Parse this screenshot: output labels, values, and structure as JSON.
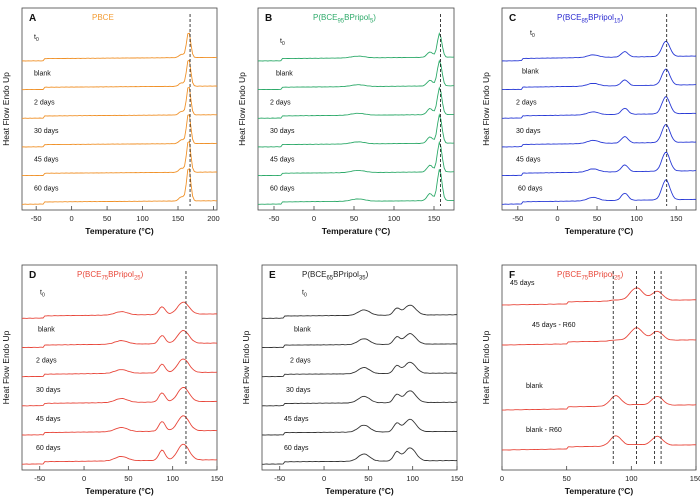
{
  "chart_data": [
    {
      "type": "line",
      "panel": "A",
      "title": "PBCE",
      "title_color": "#f39c34",
      "color": "#f0922a",
      "xlabel": "Temperature (°C)",
      "ylabel": "Heat Flow Endo Up",
      "xlim": [
        -70,
        205
      ],
      "x_ticks": [
        -50,
        0,
        50,
        100,
        150,
        200
      ],
      "dashed_line_x": 167,
      "curve_labels": [
        "t0",
        "blank",
        "2 days",
        "30 days",
        "45 days",
        "60 days"
      ],
      "peaks": [
        {
          "x": 165,
          "h": 1.2,
          "w": 4
        },
        {
          "x": 155,
          "h": 0.15,
          "w": 5
        }
      ],
      "baseline_slope": 0.05,
      "step_x": -40
    },
    {
      "type": "line",
      "panel": "B",
      "title": "P(BCE95BPripol5)",
      "title_main": "P(BCE",
      "title_sub1": "95",
      "title_mid": "BPripol",
      "title_sub2": "5",
      "title_end": ")",
      "title_color": "#2eaa6a",
      "color": "#2eaa6a",
      "xlabel": "Temperature (°C)",
      "ylabel": "Heat Flow Endo Up",
      "xlim": [
        -70,
        175
      ],
      "x_ticks": [
        -50,
        0,
        50,
        100,
        150
      ],
      "dashed_line_x": 158,
      "curve_labels": [
        "t0",
        "blank",
        "2 days",
        "30 days",
        "45 days",
        "60 days"
      ],
      "peaks": [
        {
          "x": 157,
          "h": 1.1,
          "w": 4
        },
        {
          "x": 145,
          "h": 0.25,
          "w": 5
        },
        {
          "x": 55,
          "h": 0.08,
          "w": 12
        }
      ],
      "baseline_slope": 0.06,
      "step_x": -40
    },
    {
      "type": "line",
      "panel": "C",
      "title": "P(BCE85BPripol15)",
      "title_main": "P(BCE",
      "title_sub1": "85",
      "title_mid": "BPripol",
      "title_sub2": "15",
      "title_end": ")",
      "title_color": "#2a2ad0",
      "color": "#2a3bd6",
      "xlabel": "Temperature (°C)",
      "ylabel": "Heat Flow Endo Up",
      "xlim": [
        -70,
        175
      ],
      "x_ticks": [
        -50,
        0,
        50,
        100,
        150
      ],
      "dashed_line_x": 138,
      "curve_labels": [
        "t0",
        "blank",
        "2 days",
        "30 days",
        "45 days",
        "60 days"
      ],
      "peaks": [
        {
          "x": 137,
          "h": 0.7,
          "w": 7
        },
        {
          "x": 85,
          "h": 0.25,
          "w": 6
        },
        {
          "x": 45,
          "h": 0.12,
          "w": 10
        }
      ],
      "baseline_slope": 0.1,
      "step_x": -45
    },
    {
      "type": "line",
      "panel": "D",
      "title": "P(BCE75BPripol25)",
      "title_main": "P(BCE",
      "title_sub1": "75",
      "title_mid": "BPripol",
      "title_sub2": "25",
      "title_end": ")",
      "title_color": "#e8483a",
      "color": "#e8473b",
      "xlabel": "Temperature (°C)",
      "ylabel": "Heat Flow Endo Up",
      "xlim": [
        -70,
        150
      ],
      "x_ticks": [
        -50,
        0,
        50,
        100,
        150
      ],
      "dashed_line_x": 115,
      "curve_labels": [
        "t0",
        "blank",
        "2 days",
        "30 days",
        "45 days",
        "60 days"
      ],
      "peaks": [
        {
          "x": 112,
          "h": 0.55,
          "w": 9
        },
        {
          "x": 88,
          "h": 0.35,
          "w": 5
        },
        {
          "x": 42,
          "h": 0.15,
          "w": 10
        }
      ],
      "baseline_slope": 0.08,
      "step_x": -45
    },
    {
      "type": "line",
      "panel": "E",
      "title": "P(BCE65BPripol35)",
      "title_main": "P(BCE",
      "title_sub1": "65",
      "title_mid": "BPripol",
      "title_sub2": "35",
      "title_end": ")",
      "title_color": "#222222",
      "color": "#333333",
      "xlabel": "Temperature (°C)",
      "ylabel": "Heat Flow Endo Up",
      "xlim": [
        -70,
        150
      ],
      "x_ticks": [
        -50,
        0,
        50,
        100,
        150
      ],
      "dashed_line_x": null,
      "curve_labels": [
        "t0",
        "blank",
        "2 days",
        "30 days",
        "45 days",
        "60 days"
      ],
      "peaks": [
        {
          "x": 97,
          "h": 0.45,
          "w": 9
        },
        {
          "x": 82,
          "h": 0.3,
          "w": 5
        },
        {
          "x": 45,
          "h": 0.25,
          "w": 9
        }
      ],
      "baseline_slope": 0.05,
      "step_x": -45
    },
    {
      "type": "line",
      "panel": "F",
      "title": "P(BCE75BPripol25)",
      "title_main": "P(BCE",
      "title_sub1": "75",
      "title_mid": "BPripol",
      "title_sub2": "25",
      "title_end": ")",
      "title_color": "#e8483a",
      "color": "#e8473b",
      "xlabel": "Temperature (°C)",
      "ylabel": "Heat Flow Endo Up",
      "xlim": [
        0,
        150
      ],
      "x_ticks": [
        0,
        50,
        100,
        150
      ],
      "dashed_lines_x": [
        86,
        104,
        118,
        123
      ],
      "curve_labels": [
        "45 days",
        "45 days - R60",
        "blank",
        "blank - R60"
      ],
      "peaks": [
        {
          "x": 104,
          "h": 0.5,
          "w": 7
        },
        {
          "x": 88,
          "h": 0.4,
          "w": 6
        },
        {
          "x": 120,
          "h": 0.35,
          "w": 6
        }
      ],
      "baseline_slope": 0.12,
      "step_x": 50
    }
  ]
}
